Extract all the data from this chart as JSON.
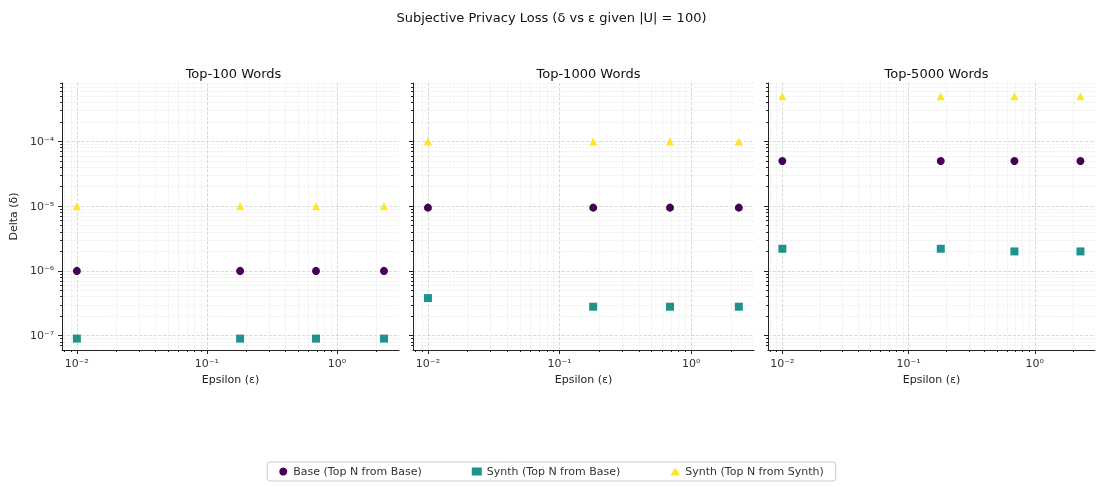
{
  "chart_data": [
    {
      "type": "scatter",
      "title": "Top-100 Words",
      "annotations": [
        "Subjective Privacy Loss (δ vs ε given |U| = 100)"
      ],
      "xlabel": "Epsilon (ε)",
      "ylabel": "Delta (δ)",
      "log": "xy",
      "grid": true,
      "legend": "bottom",
      "x": [
        0.01,
        0.18,
        0.69,
        2.3
      ],
      "xlim": [
        0.0077,
        3.0
      ],
      "ylim": [
        6e-08,
        0.0008
      ],
      "xticks": [
        {
          "value": 0.01,
          "label": "10⁻²"
        },
        {
          "value": 0.1,
          "label": "10⁻¹"
        },
        {
          "value": 1,
          "label": "10⁰"
        }
      ],
      "yticks": [
        {
          "value": 1e-07,
          "label": "10⁻⁷"
        },
        {
          "value": 1e-06,
          "label": "10⁻⁶"
        },
        {
          "value": 1e-05,
          "label": "10⁻⁵"
        },
        {
          "value": 0.0001,
          "label": "10⁻⁴"
        }
      ],
      "series": [
        {
          "name": "Base (Top N from Base)",
          "color": "#440154",
          "marker": "circle",
          "values": [
            1e-06,
            1e-06,
            1e-06,
            1e-06
          ]
        },
        {
          "name": "Synth (Top N from Base)",
          "color": "#21918c",
          "marker": "square",
          "values": [
            9e-08,
            9e-08,
            9e-08,
            9e-08
          ]
        },
        {
          "name": "Synth (Top N from Synth)",
          "color": "#fde725",
          "marker": "triangle",
          "values": [
            1e-05,
            1e-05,
            1e-05,
            1e-05
          ]
        }
      ]
    },
    {
      "type": "scatter",
      "title": "Top-1000 Words",
      "xlabel": "Epsilon (ε)",
      "log": "xy",
      "grid": true,
      "tick_labels": "x",
      "x": [
        0.01,
        0.18,
        0.69,
        2.3
      ],
      "xlim": [
        0.0077,
        3.0
      ],
      "ylim": [
        6e-08,
        0.0008
      ],
      "xticks": [
        {
          "value": 0.01,
          "label": "10⁻²"
        },
        {
          "value": 0.1,
          "label": "10⁻¹"
        },
        {
          "value": 1,
          "label": "10⁰"
        }
      ],
      "yticks": [
        {
          "value": 1e-07,
          "label": null
        },
        {
          "value": 1e-06,
          "label": null
        },
        {
          "value": 1e-05,
          "label": null
        },
        {
          "value": 0.0001,
          "label": null
        }
      ],
      "series": [
        {
          "color": "#440154",
          "marker": "circle",
          "values": [
            9.5e-06,
            9.5e-06,
            9.5e-06,
            9.5e-06
          ]
        },
        {
          "color": "#21918c",
          "marker": "square",
          "values": [
            3.8e-07,
            2.8e-07,
            2.8e-07,
            2.8e-07
          ]
        },
        {
          "color": "#fde725",
          "marker": "triangle",
          "values": [
            0.0001,
            0.0001,
            0.0001,
            0.0001
          ]
        }
      ]
    },
    {
      "type": "scatter",
      "title": "Top-5000 Words",
      "xlabel": "Epsilon (ε)",
      "log": "xy",
      "grid": true,
      "tick_labels": "x",
      "x": [
        0.01,
        0.18,
        0.69,
        2.3
      ],
      "xlim": [
        0.0077,
        3.0
      ],
      "ylim": [
        6e-08,
        0.0008
      ],
      "xticks": [
        {
          "value": 0.01,
          "label": "10⁻²"
        },
        {
          "value": 0.1,
          "label": "10⁻¹"
        },
        {
          "value": 1,
          "label": "10⁰"
        }
      ],
      "yticks": [
        {
          "value": 1e-07,
          "label": null
        },
        {
          "value": 1e-06,
          "label": null
        },
        {
          "value": 1e-05,
          "label": null
        },
        {
          "value": 0.0001,
          "label": null
        }
      ],
      "series": [
        {
          "color": "#440154",
          "marker": "circle",
          "values": [
            5e-05,
            5e-05,
            5e-05,
            5e-05
          ]
        },
        {
          "color": "#21918c",
          "marker": "square",
          "values": [
            2.2e-06,
            2.2e-06,
            2e-06,
            2e-06
          ]
        },
        {
          "color": "#fde725",
          "marker": "triangle",
          "values": [
            0.0005,
            0.0005,
            0.0005,
            0.0005
          ]
        }
      ]
    }
  ]
}
